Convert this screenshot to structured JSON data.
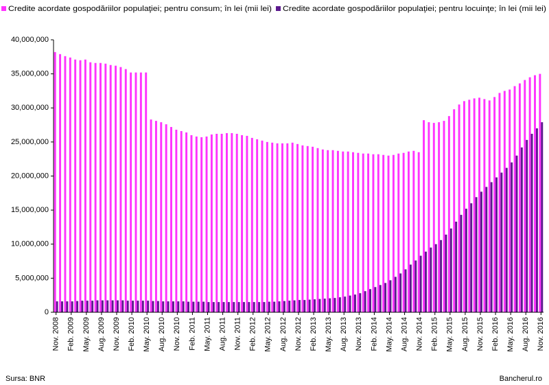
{
  "chart_data": {
    "type": "bar",
    "categories": [
      "Nov. 2008",
      null,
      null,
      "Feb. 2009",
      null,
      null,
      "May. 2009",
      null,
      null,
      "Aug. 2009",
      null,
      null,
      "Nov. 2009",
      null,
      null,
      "Feb. 2010",
      null,
      null,
      "May. 2010",
      null,
      null,
      "Aug. 2010",
      null,
      null,
      "Nov. 2010",
      null,
      null,
      "Feb. 2011",
      null,
      null,
      "May. 2011",
      null,
      null,
      "Aug. 2011",
      null,
      null,
      "Nov. 2011",
      null,
      null,
      "Feb. 2012",
      null,
      null,
      "May. 2012",
      null,
      null,
      "Aug. 2012",
      null,
      null,
      "Nov. 2012",
      null,
      null,
      "Feb. 2013",
      null,
      null,
      "May. 2013",
      null,
      null,
      "Aug. 2013",
      null,
      null,
      "Nov. 2013",
      null,
      null,
      "Feb. 2014",
      null,
      null,
      "May. 2014",
      null,
      null,
      "Aug. 2014",
      null,
      null,
      "Nov. 2014",
      null,
      null,
      "Feb. 2015",
      null,
      null,
      "May. 2015",
      null,
      null,
      "Aug. 2015",
      null,
      null,
      "Nov. 2015",
      null,
      null,
      "Feb. 2016",
      null,
      null,
      "May. 2016",
      null,
      null,
      "Aug. 2016",
      null,
      null,
      "Nov. 2016"
    ],
    "series": [
      {
        "name": "Credite acordate gospodăriilor populaţiei; pentru consum; în lei (mii lei)",
        "color": "#ff33ff",
        "values": [
          38200000,
          37900000,
          37600000,
          37400000,
          37100000,
          37000000,
          37100000,
          36700000,
          36600000,
          36600000,
          36500000,
          36300000,
          36200000,
          36000000,
          35700000,
          35200000,
          35200000,
          35200000,
          35200000,
          28300000,
          28100000,
          27900000,
          27600000,
          27200000,
          26800000,
          26600000,
          26400000,
          26000000,
          25800000,
          25700000,
          25800000,
          26100000,
          26200000,
          26200000,
          26300000,
          26300000,
          26200000,
          26000000,
          25900000,
          25600000,
          25400000,
          25200000,
          25000000,
          24900000,
          24800000,
          24800000,
          24800000,
          24900000,
          24700000,
          24500000,
          24400000,
          24300000,
          24100000,
          23900000,
          23800000,
          23800000,
          23700000,
          23600000,
          23600000,
          23500000,
          23400000,
          23300000,
          23300000,
          23200000,
          23200000,
          23100000,
          23000000,
          23100000,
          23300000,
          23400000,
          23600000,
          23700000,
          23500000,
          28200000,
          27900000,
          27800000,
          27900000,
          28100000,
          28800000,
          29800000,
          30500000,
          31000000,
          31200000,
          31400000,
          31500000,
          31300000,
          31100000,
          31600000,
          32200000,
          32500000,
          32700000,
          33200000,
          33600000,
          34100000,
          34500000,
          34800000,
          35000000
        ]
      },
      {
        "name": "Credite acordate gospodăriilor populaţiei; pentru locuinţe; în lei (mii lei)",
        "color": "#5c1a8e",
        "values": [
          1600000,
          1600000,
          1600000,
          1600000,
          1650000,
          1700000,
          1700000,
          1700000,
          1750000,
          1750000,
          1750000,
          1750000,
          1750000,
          1750000,
          1700000,
          1700000,
          1700000,
          1700000,
          1700000,
          1650000,
          1650000,
          1600000,
          1600000,
          1600000,
          1600000,
          1600000,
          1550000,
          1550000,
          1550000,
          1550000,
          1500000,
          1500000,
          1500000,
          1500000,
          1500000,
          1500000,
          1500000,
          1500000,
          1500000,
          1500000,
          1500000,
          1500000,
          1550000,
          1550000,
          1600000,
          1650000,
          1700000,
          1750000,
          1800000,
          1800000,
          1850000,
          1900000,
          1950000,
          2000000,
          2050000,
          2100000,
          2200000,
          2300000,
          2450000,
          2600000,
          2800000,
          3100000,
          3400000,
          3700000,
          4000000,
          4300000,
          4700000,
          5200000,
          5700000,
          6300000,
          7000000,
          7600000,
          8300000,
          8900000,
          9500000,
          10000000,
          10600000,
          11400000,
          12300000,
          13300000,
          14300000,
          15200000,
          16000000,
          16900000,
          17700000,
          18400000,
          19100000,
          19800000,
          20500000,
          21200000,
          22000000,
          23000000,
          24200000,
          25300000,
          26200000,
          27000000,
          27900000
        ]
      }
    ],
    "ylim": [
      0,
      40000000
    ],
    "yticks": [
      0,
      {
        "value": 5000000,
        "label": "5,000,000"
      },
      {
        "value": 10000000,
        "label": "10,000,000"
      },
      {
        "value": 15000000,
        "label": "15,000,000"
      },
      {
        "value": 20000000,
        "label": "20,000,000"
      },
      {
        "value": 25000000,
        "label": "25,000,000"
      },
      {
        "value": 30000000,
        "label": "30,000,000"
      },
      {
        "value": 35000000,
        "label": "35,000,000"
      },
      {
        "value": 40000000,
        "label": "40,000,000"
      }
    ],
    "legend_position": "top",
    "source": "Sursa: BNR",
    "credit": "Bancherul.ro"
  }
}
